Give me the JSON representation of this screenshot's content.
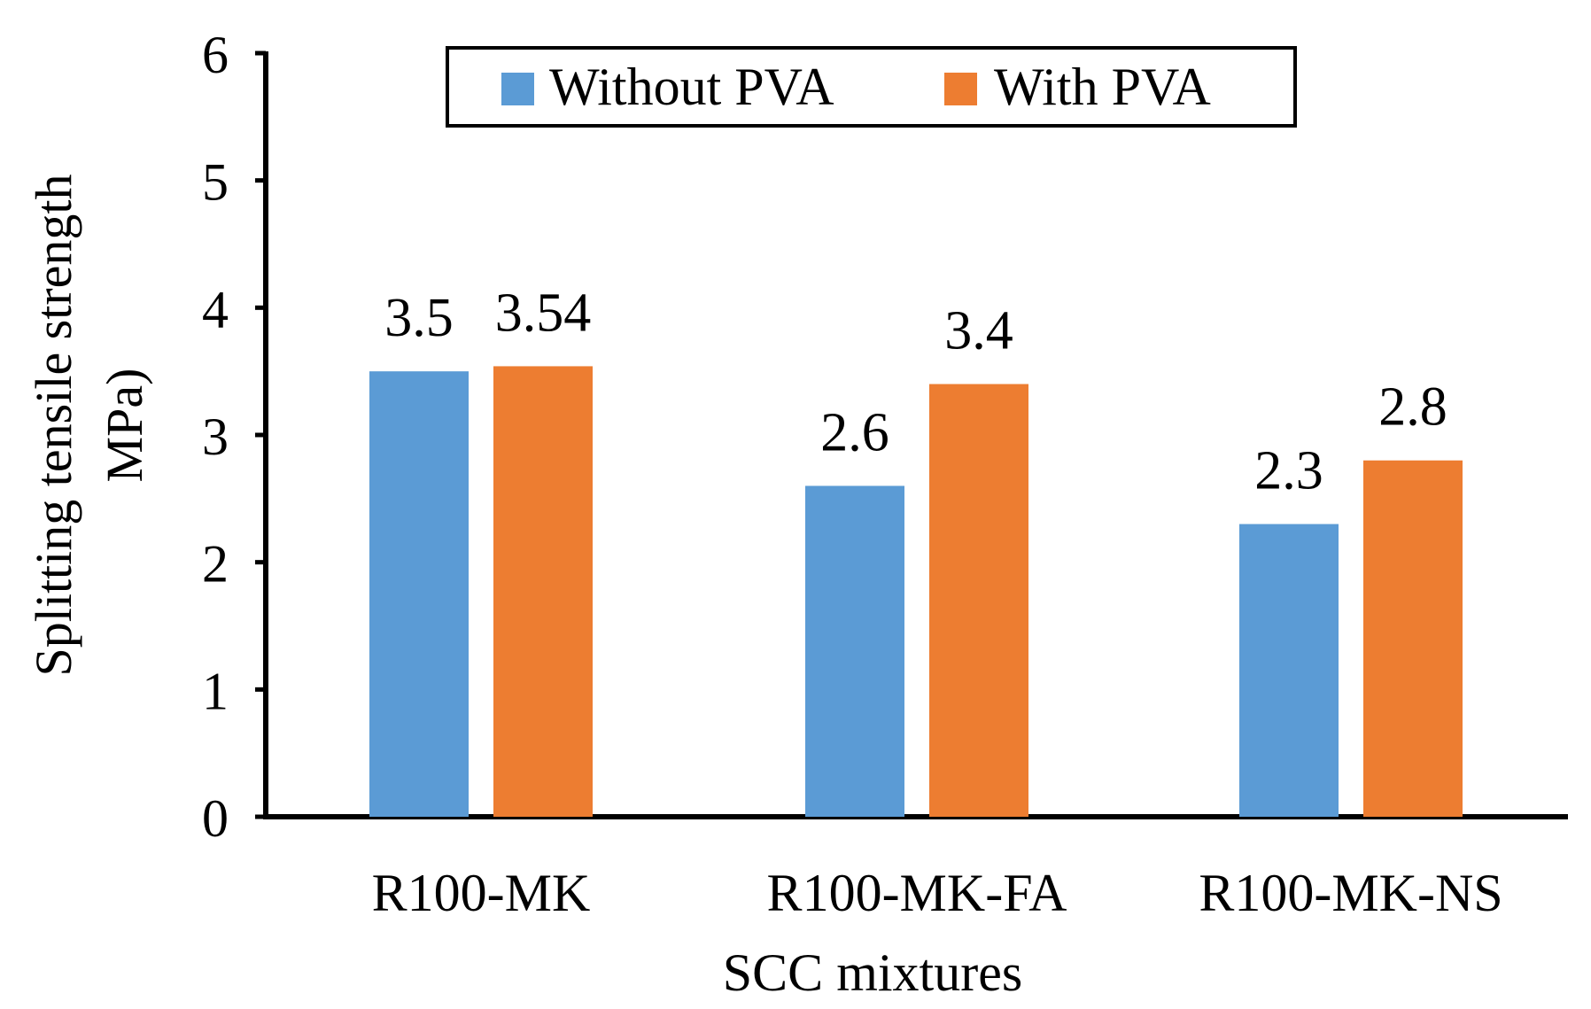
{
  "chart_data": {
    "type": "bar",
    "title": "",
    "xlabel": "SCC mixtures",
    "ylabel_lines": [
      "Splitting tensile strength",
      "MPa)"
    ],
    "categories": [
      "R100-MK",
      "R100-MK-FA",
      "R100-MK-NS"
    ],
    "series": [
      {
        "name": "Without PVA",
        "color": "#5b9bd5",
        "values": [
          3.5,
          2.6,
          2.3
        ],
        "labels": [
          "3.5",
          "2.6",
          "2.3"
        ]
      },
      {
        "name": "With PVA",
        "color": "#ed7d31",
        "values": [
          3.54,
          3.4,
          2.8
        ],
        "labels": [
          "3.54",
          "3.4",
          "2.8"
        ]
      }
    ],
    "ylim": [
      0,
      6
    ],
    "yticks": [
      "0",
      "1",
      "2",
      "3",
      "4",
      "5",
      "6"
    ],
    "grid": false,
    "legend_position": "top-center"
  }
}
